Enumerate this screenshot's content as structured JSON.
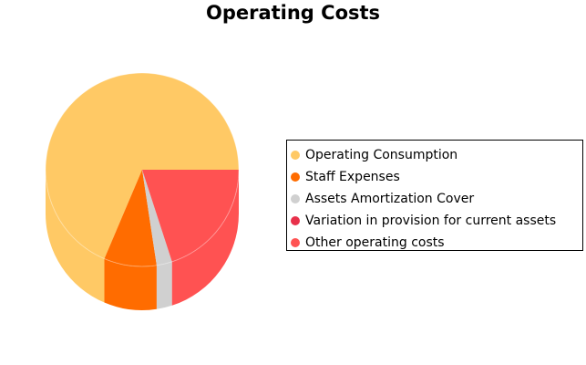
{
  "chart_data": {
    "type": "pie",
    "title": "Operating Costs",
    "style": "3d-cylinder",
    "legend_position": "right",
    "categories": [
      "Operating Consumption",
      "Staff Expenses",
      "Assets Amortization Cover",
      "Variation in provision for current assets",
      "Other operating costs"
    ],
    "values": [
      68.6,
      8.8,
      2.6,
      0.0,
      20.0
    ],
    "colors": [
      "#FFC965",
      "#FF6C00",
      "#D0D0D0",
      "#E8304A",
      "#FF5252"
    ]
  }
}
